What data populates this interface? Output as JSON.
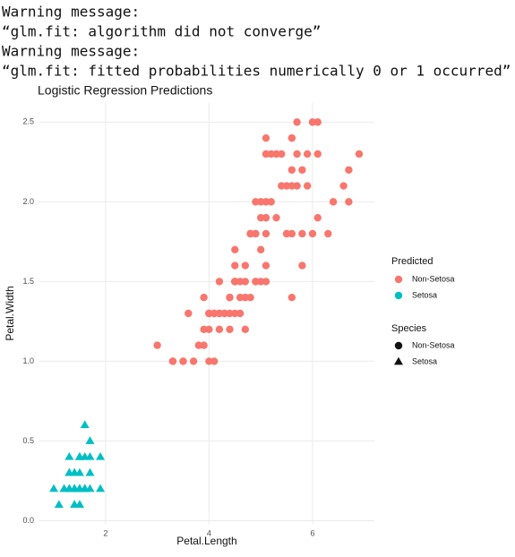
{
  "console": [
    "Warning message:",
    "“glm.fit: algorithm did not converge”",
    "Warning message:",
    "“glm.fit: fitted probabilities numerically 0 or 1 occurred”"
  ],
  "chart_data": {
    "type": "scatter",
    "title": "Logistic Regression Predictions",
    "x_label": "Petal.Length",
    "y_label": "Petal.Width",
    "xlim": [
      0.705,
      7.195
    ],
    "ylim": [
      -0.02,
      2.62
    ],
    "xticks": [
      2,
      4,
      6
    ],
    "yticks": [
      {
        "value": 0,
        "label": "0.0"
      },
      {
        "value": 0.5,
        "label": "0.5"
      },
      {
        "value": 1,
        "label": "1.0"
      },
      {
        "value": 1.5,
        "label": "1.5"
      },
      {
        "value": 2,
        "label": "2.0"
      },
      {
        "value": 2.5,
        "label": "2.5"
      }
    ],
    "grid": true,
    "series": [
      {
        "name": "Non-Setosa",
        "color": "#F8766D",
        "shape": "circle",
        "x": [
          4.7,
          4.5,
          4.9,
          4.0,
          4.6,
          4.5,
          4.7,
          3.3,
          4.6,
          3.9,
          3.5,
          4.2,
          4.0,
          4.7,
          3.6,
          4.4,
          4.5,
          4.1,
          4.5,
          3.9,
          4.8,
          4.0,
          4.9,
          4.7,
          4.3,
          4.4,
          4.8,
          5.0,
          4.5,
          3.5,
          3.8,
          3.7,
          3.9,
          5.1,
          4.5,
          4.5,
          4.7,
          4.4,
          4.1,
          4.0,
          4.4,
          4.6,
          4.0,
          3.3,
          4.2,
          4.2,
          4.2,
          4.3,
          3.0,
          4.1,
          6.0,
          5.1,
          5.9,
          5.6,
          5.8,
          6.6,
          4.5,
          6.3,
          5.8,
          6.1,
          5.1,
          5.3,
          5.5,
          5.0,
          5.1,
          5.3,
          5.5,
          6.7,
          6.9,
          5.0,
          5.7,
          4.9,
          6.7,
          4.9,
          5.7,
          6.0,
          4.8,
          4.9,
          5.6,
          5.8,
          6.1,
          6.4,
          5.6,
          5.1,
          5.6,
          6.1,
          5.6,
          5.5,
          4.8,
          5.4,
          5.6,
          5.1,
          5.1,
          5.9,
          5.7,
          5.2,
          5.0,
          5.2,
          5.4,
          5.1
        ],
        "values": [
          1.4,
          1.5,
          1.5,
          1.3,
          1.5,
          1.3,
          1.6,
          1.0,
          1.3,
          1.4,
          1.0,
          1.5,
          1.0,
          1.4,
          1.3,
          1.4,
          1.5,
          1.0,
          1.5,
          1.1,
          1.8,
          1.3,
          1.5,
          1.2,
          1.3,
          1.4,
          1.4,
          1.7,
          1.5,
          1.0,
          1.1,
          1.0,
          1.2,
          1.6,
          1.5,
          1.6,
          1.5,
          1.3,
          1.3,
          1.3,
          1.2,
          1.4,
          1.2,
          1.0,
          1.3,
          1.2,
          1.3,
          1.3,
          1.1,
          1.3,
          2.5,
          1.9,
          2.1,
          1.8,
          2.2,
          2.1,
          1.7,
          1.8,
          1.8,
          2.5,
          2.0,
          1.9,
          2.1,
          2.0,
          2.4,
          2.3,
          1.8,
          2.2,
          2.3,
          1.5,
          2.3,
          2.0,
          2.0,
          1.8,
          2.1,
          1.8,
          1.8,
          1.8,
          2.1,
          1.6,
          1.9,
          2.0,
          2.2,
          1.5,
          1.4,
          2.3,
          2.4,
          1.8,
          1.8,
          2.1,
          2.4,
          2.3,
          1.9,
          2.3,
          2.5,
          2.3,
          1.9,
          2.0,
          2.3,
          1.8
        ]
      },
      {
        "name": "Setosa",
        "color": "#00BFC4",
        "shape": "triangle",
        "x": [
          1.4,
          1.4,
          1.3,
          1.5,
          1.4,
          1.7,
          1.4,
          1.5,
          1.4,
          1.5,
          1.5,
          1.6,
          1.4,
          1.1,
          1.2,
          1.5,
          1.3,
          1.4,
          1.7,
          1.5,
          1.7,
          1.5,
          1.0,
          1.7,
          1.9,
          1.6,
          1.6,
          1.5,
          1.4,
          1.6,
          1.6,
          1.5,
          1.5,
          1.4,
          1.5,
          1.2,
          1.3,
          1.4,
          1.3,
          1.5,
          1.3,
          1.3,
          1.3,
          1.6,
          1.9,
          1.4,
          1.6,
          1.4,
          1.5,
          1.4
        ],
        "values": [
          0.2,
          0.2,
          0.2,
          0.2,
          0.2,
          0.4,
          0.3,
          0.2,
          0.2,
          0.1,
          0.2,
          0.2,
          0.1,
          0.1,
          0.2,
          0.4,
          0.4,
          0.3,
          0.3,
          0.3,
          0.2,
          0.4,
          0.2,
          0.5,
          0.2,
          0.2,
          0.4,
          0.2,
          0.2,
          0.2,
          0.2,
          0.4,
          0.1,
          0.2,
          0.2,
          0.2,
          0.2,
          0.1,
          0.2,
          0.2,
          0.3,
          0.3,
          0.2,
          0.6,
          0.4,
          0.3,
          0.2,
          0.2,
          0.2,
          0.2
        ]
      }
    ],
    "legends": [
      {
        "title": "Predicted"
      },
      {
        "title": "Species",
        "labels": [
          "Non-Setosa",
          "Setosa"
        ],
        "color": "#111111"
      }
    ]
  }
}
